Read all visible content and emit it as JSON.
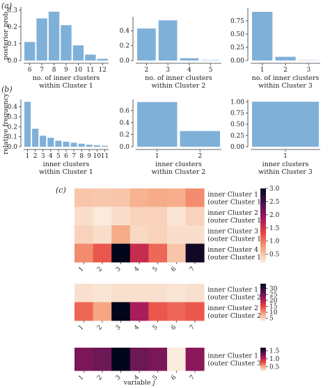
{
  "panel_labels": [
    "(a)",
    "(b)",
    "(c)"
  ],
  "colors": {
    "bar": "#7fb0d8",
    "axis": "#333333",
    "heatmap": [
      "#faebdd",
      "#f6a47f",
      "#e8413e",
      "#a2195f",
      "#4b1550",
      "#03051a"
    ]
  },
  "chart_data": [
    {
      "type": "bar",
      "panel": "(a)",
      "ylabel": "posterior prob.",
      "xlabel": [
        "no. of inner clusters",
        "within Cluster 1"
      ],
      "categories": [
        "6",
        "7",
        "8",
        "9",
        "10",
        "11",
        "12"
      ],
      "values": [
        0.11,
        0.25,
        0.29,
        0.21,
        0.09,
        0.035,
        0.01
      ],
      "ylim": [
        0,
        0.31
      ],
      "yticks": [
        "0.0",
        "0.1",
        "0.2",
        "0.3"
      ],
      "ytick_values": [
        0,
        0.1,
        0.2,
        0.3
      ]
    },
    {
      "type": "bar",
      "panel": "(a)",
      "ylabel": "",
      "xlabel": [
        "no. of inner clusters",
        "within Cluster 2"
      ],
      "categories": [
        "2",
        "3",
        "4",
        "5"
      ],
      "values": [
        0.43,
        0.54,
        0.03,
        0.005
      ],
      "ylim": [
        0,
        0.57
      ],
      "yticks": [
        "0.0",
        "0.2",
        "0.4"
      ],
      "ytick_values": [
        0,
        0.2,
        0.4
      ]
    },
    {
      "type": "bar",
      "panel": "(a)",
      "ylabel": "",
      "xlabel": [
        "no. of inner clusters",
        "within Cluster 3"
      ],
      "categories": [
        "1",
        "2",
        "3"
      ],
      "values": [
        0.92,
        0.07,
        0.005
      ],
      "ylim": [
        0,
        0.96
      ],
      "yticks": [
        "0.00",
        "0.25",
        "0.50",
        "0.75"
      ],
      "ytick_values": [
        0,
        0.25,
        0.5,
        0.75
      ]
    },
    {
      "type": "bar",
      "panel": "(b)",
      "ylabel": "relative frequency",
      "xlabel": [
        "inner clusters",
        "within Cluster 1"
      ],
      "categories": [
        "1",
        "2",
        "3",
        "4",
        "5",
        "6",
        "7",
        "8",
        "9",
        "10",
        "11"
      ],
      "values": [
        0.45,
        0.18,
        0.11,
        0.09,
        0.06,
        0.05,
        0.04,
        0.03,
        0.02,
        0.015,
        0.01
      ],
      "ylim": [
        0,
        0.46
      ],
      "yticks": [
        "0.0",
        "0.1",
        "0.2",
        "0.3",
        "0.4"
      ],
      "ytick_values": [
        0,
        0.1,
        0.2,
        0.3,
        0.4
      ]
    },
    {
      "type": "bar",
      "panel": "(b)",
      "ylabel": "",
      "xlabel": [
        "inner clusters",
        "within Cluster 2"
      ],
      "categories": [
        "1",
        "2"
      ],
      "values": [
        0.74,
        0.26
      ],
      "ylim": [
        0,
        0.76
      ],
      "yticks": [
        "0.0",
        "0.2",
        "0.4",
        "0.6"
      ],
      "ytick_values": [
        0,
        0.2,
        0.4,
        0.6
      ]
    },
    {
      "type": "bar",
      "panel": "(b)",
      "ylabel": "",
      "xlabel": [
        "inner clusters",
        "within Cluster 3"
      ],
      "categories": [
        "1"
      ],
      "values": [
        1.0
      ],
      "ylim": [
        0,
        1.02
      ],
      "yticks": [
        "0.00",
        "0.25",
        "0.50",
        "0.75",
        "1.00"
      ],
      "ytick_values": [
        0,
        0.25,
        0.5,
        0.75,
        1.0
      ]
    },
    {
      "type": "heatmap",
      "panel": "(c)",
      "columns": [
        "1",
        "2",
        "3",
        "4",
        "5",
        "6",
        "7"
      ],
      "rows": [
        "inner Cluster 1\n(outer Cluster 1)",
        "inner Cluster 2\n(outer Cluster 1)",
        "inner Cluster 3\n(outer Cluster 1)",
        "inner Cluster 4\n(outer Cluster 1)"
      ],
      "values": [
        [
          0.5,
          0.48,
          0.5,
          0.65,
          0.7,
          0.68,
          0.9
        ],
        [
          0.3,
          0.2,
          0.3,
          0.4,
          0.4,
          0.25,
          0.4
        ],
        [
          0.4,
          0.3,
          0.7,
          0.35,
          0.4,
          0.3,
          0.3
        ],
        [
          0.9,
          1.2,
          3.0,
          1.6,
          1.1,
          0.5,
          2.9
        ]
      ],
      "zlim": [
        0.2,
        3.0
      ],
      "colorbar_ticks": [
        "0.5",
        "1.0",
        "1.5",
        "2.0",
        "2.5",
        "3.0"
      ],
      "colorbar_values": [
        0.5,
        1.0,
        1.5,
        2.0,
        2.5,
        3.0
      ]
    },
    {
      "type": "heatmap",
      "panel": "(c)",
      "columns": [
        "1",
        "2",
        "3",
        "4",
        "5",
        "6",
        "7"
      ],
      "rows": [
        "inner Cluster 1\n(outer Cluster 2)",
        "inner Cluster 2\n(outer Cluster 2)"
      ],
      "values": [
        [
          4.0,
          3.5,
          4.0,
          4.0,
          4.0,
          3.5,
          4.0
        ],
        [
          13.0,
          9.0,
          34.0,
          21.0,
          14.0,
          13.0,
          14.0
        ]
      ],
      "zlim": [
        3.0,
        34.0
      ],
      "colorbar_ticks": [
        "5",
        "10",
        "15",
        "20",
        "25",
        "30"
      ],
      "colorbar_values": [
        5,
        10,
        15,
        20,
        25,
        30
      ]
    },
    {
      "type": "heatmap",
      "panel": "(c)",
      "columns": [
        "1",
        "2",
        "3",
        "4",
        "5",
        "6",
        "7"
      ],
      "rows": [
        "inner Cluster 1\n(outer Cluster 3)"
      ],
      "values": [
        [
          1.25,
          1.3,
          1.7,
          1.3,
          1.25,
          0.25,
          1.2
        ]
      ],
      "zlim": [
        0.25,
        1.7
      ],
      "colorbar_ticks": [
        "0.5",
        "1.0",
        "1.5"
      ],
      "colorbar_values": [
        0.5,
        1.0,
        1.5
      ],
      "xlabel": "variable j"
    }
  ]
}
